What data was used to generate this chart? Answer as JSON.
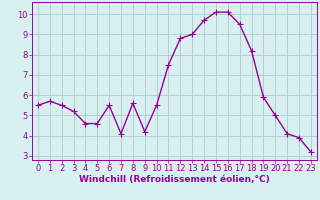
{
  "x": [
    0,
    1,
    2,
    3,
    4,
    5,
    6,
    7,
    8,
    9,
    10,
    11,
    12,
    13,
    14,
    15,
    16,
    17,
    18,
    19,
    20,
    21,
    22,
    23
  ],
  "y": [
    5.5,
    5.7,
    5.5,
    5.2,
    4.6,
    4.6,
    5.5,
    4.1,
    5.6,
    4.2,
    5.5,
    7.5,
    8.8,
    9.0,
    9.7,
    10.1,
    10.1,
    9.5,
    8.2,
    5.9,
    5.0,
    4.1,
    3.9,
    3.2
  ],
  "line_color": "#990099",
  "marker": "+",
  "marker_size": 4,
  "bg_color": "#d8f0f0",
  "grid_color": "#aacccc",
  "xlabel": "Windchill (Refroidissement éolien,°C)",
  "xlim": [
    -0.5,
    23.5
  ],
  "ylim": [
    2.8,
    10.6
  ],
  "yticks": [
    3,
    4,
    5,
    6,
    7,
    8,
    9,
    10
  ],
  "xticks": [
    0,
    1,
    2,
    3,
    4,
    5,
    6,
    7,
    8,
    9,
    10,
    11,
    12,
    13,
    14,
    15,
    16,
    17,
    18,
    19,
    20,
    21,
    22,
    23
  ],
  "xlabel_fontsize": 6.5,
  "tick_fontsize": 6.0,
  "line_width": 1.0,
  "marker_edge_width": 0.8
}
